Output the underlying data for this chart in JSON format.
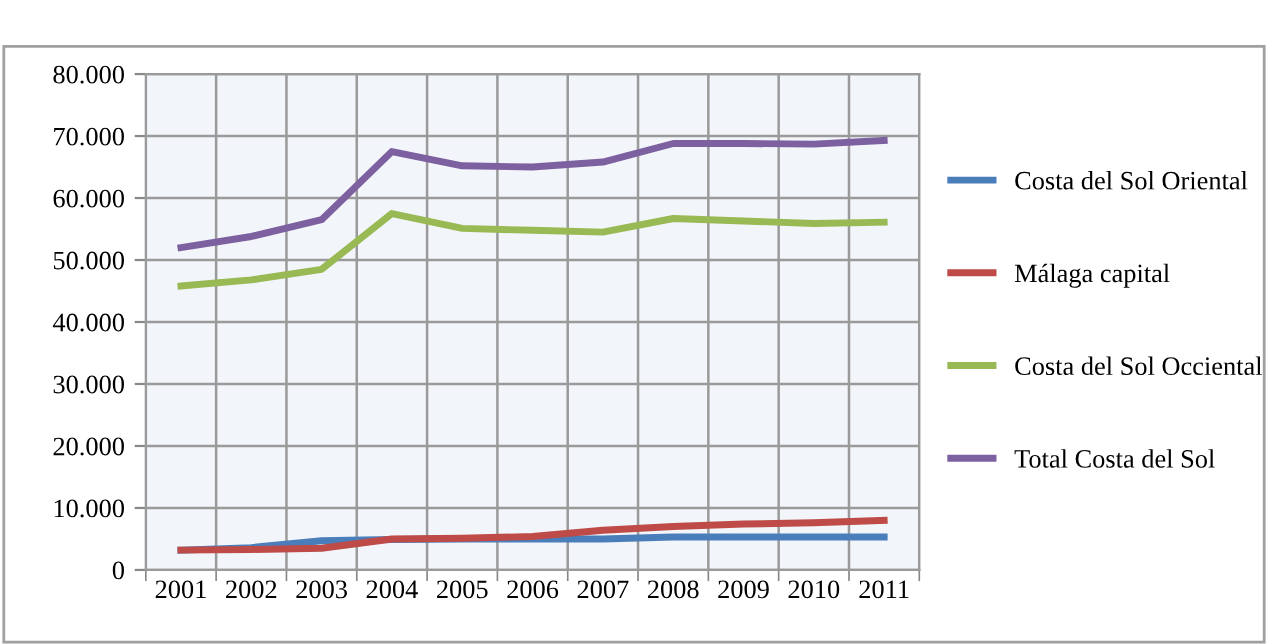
{
  "chart_data": {
    "type": "line",
    "categories": [
      "2001",
      "2002",
      "2003",
      "2004",
      "2005",
      "2006",
      "2007",
      "2008",
      "2009",
      "2010",
      "2011"
    ],
    "series": [
      {
        "name": "Costa del Sol Oriental",
        "color": "#4a7ebb",
        "values": [
          3200,
          3600,
          4700,
          4900,
          5000,
          5000,
          5000,
          5300,
          5300,
          5300,
          5300
        ]
      },
      {
        "name": "Málaga capital",
        "color": "#be4b48",
        "values": [
          3200,
          3300,
          3500,
          5000,
          5100,
          5400,
          6400,
          7000,
          7400,
          7600,
          8000
        ]
      },
      {
        "name": "Costa del Sol Occiental",
        "color": "#98b954",
        "values": [
          45800,
          46800,
          48500,
          57500,
          55100,
          54800,
          54500,
          56700,
          56300,
          55900,
          56100
        ]
      },
      {
        "name": "Total Costa del Sol",
        "color": "#7d60a0",
        "values": [
          52000,
          53800,
          56500,
          67500,
          65200,
          65000,
          65800,
          68800,
          68800,
          68700,
          69300
        ]
      }
    ],
    "ylim": [
      0,
      80000
    ],
    "yticks": [
      0,
      {
        "value": 10000,
        "label": "10.000"
      },
      {
        "value": 20000,
        "label": "20.000"
      },
      {
        "value": 30000,
        "label": "30.000"
      },
      {
        "value": 40000,
        "label": "40.000"
      },
      {
        "value": 50000,
        "label": "50.000"
      },
      {
        "value": 60000,
        "label": "60.000"
      },
      {
        "value": 70000,
        "label": "70.000"
      },
      {
        "value": 80000,
        "label": "80.000"
      }
    ],
    "grid": true,
    "legend": "right",
    "marker": "none",
    "line_style": "solid"
  }
}
